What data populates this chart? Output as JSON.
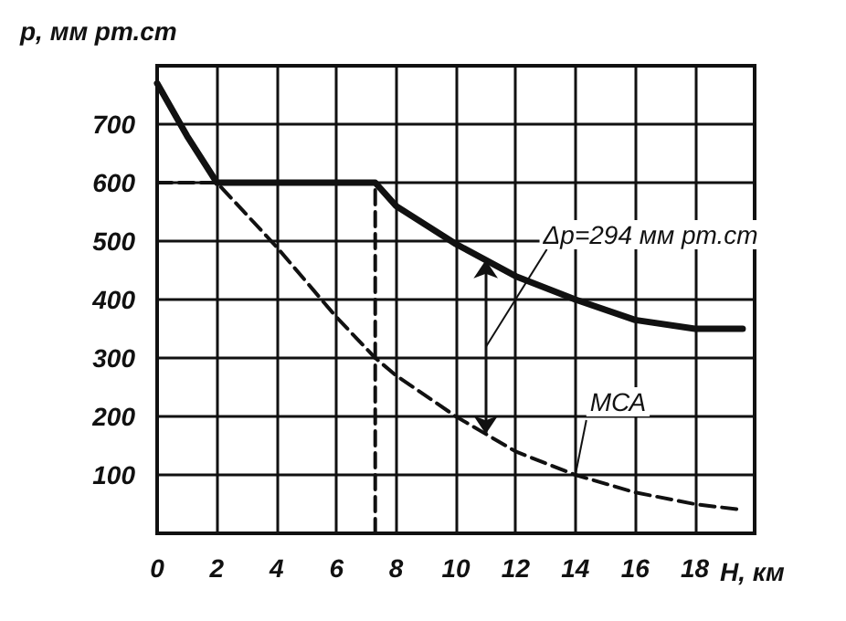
{
  "chart_data": {
    "type": "line",
    "xlabel": "Н, км",
    "ylabel": "р, мм рт.ст",
    "xlim": [
      0,
      20
    ],
    "xticks": [
      0,
      2,
      4,
      6,
      8,
      10,
      12,
      14,
      16,
      18
    ],
    "ylim": [
      0,
      800
    ],
    "yticks": [
      100,
      200,
      300,
      400,
      500,
      600,
      700,
      {
        "value": 800,
        "label": null
      }
    ],
    "grid": true,
    "marker": "none",
    "series": [
      {
        "color": "#111111",
        "line_style": "solid",
        "x": [
          0,
          1,
          2,
          4,
          6,
          7.3,
          8,
          10,
          12,
          14,
          16,
          18,
          19.6
        ],
        "values": [
          770,
          680,
          600,
          600,
          600,
          600,
          560,
          495,
          440,
          400,
          365,
          350,
          350
        ]
      },
      {
        "color": "#111111",
        "line_style": "dashed",
        "x": [
          0,
          2,
          4,
          6,
          7.3,
          8,
          10,
          12,
          14,
          16,
          18,
          19.6
        ],
        "values": [
          600,
          600,
          490,
          370,
          300,
          270,
          200,
          140,
          100,
          70,
          50,
          40
        ]
      },
      {
        "color": "#111111",
        "line_style": "dashed",
        "x": [
          7.3,
          7.3
        ],
        "values": [
          0,
          600
        ]
      }
    ],
    "annotations": [
      "Δp=294 мм рт.ст",
      {
        "text": "МСА",
        "x": 14,
        "y": 100
      }
    ]
  }
}
